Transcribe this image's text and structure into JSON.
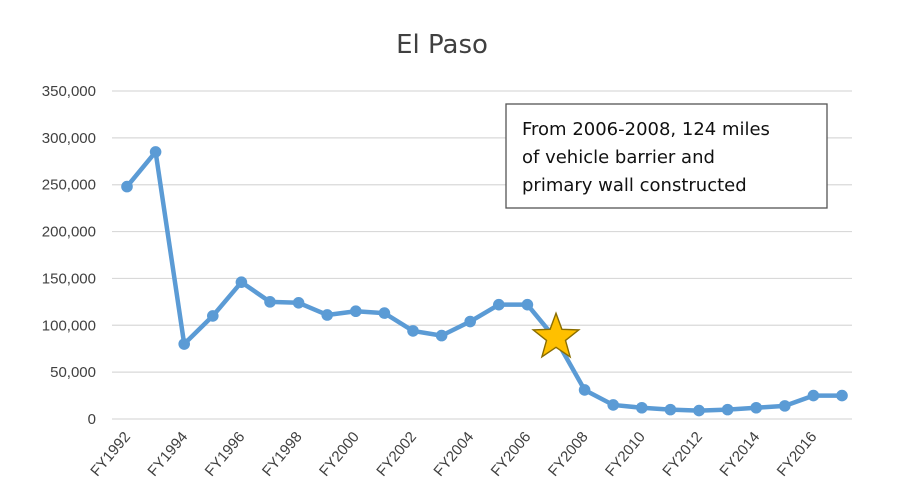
{
  "chart_data": {
    "type": "line",
    "title": "El Paso",
    "xlabel": "",
    "ylabel": "",
    "ylim": [
      0,
      350000
    ],
    "y_ticks": [
      "350,000",
      "300,000",
      "250,000",
      "200,000",
      "150,000",
      "100,000",
      "50,000",
      "0"
    ],
    "y_tick_values": [
      350000,
      300000,
      250000,
      200000,
      150000,
      100000,
      50000,
      0
    ],
    "grid": true,
    "legend": "none",
    "x": [
      "FY1992",
      "FY1993",
      "FY1994",
      "FY1995",
      "FY1996",
      "FY1997",
      "FY1998",
      "FY1999",
      "FY2000",
      "FY2001",
      "FY2002",
      "FY2003",
      "FY2004",
      "FY2005",
      "FY2006",
      "FY2007",
      "FY2008",
      "FY2009",
      "FY2010",
      "FY2011",
      "FY2012",
      "FY2013",
      "FY2014",
      "FY2015",
      "FY2016",
      "FY2017"
    ],
    "x_tick_labels": [
      "FY1992",
      "FY1994",
      "FY1996",
      "FY1998",
      "FY2000",
      "FY2002",
      "FY2004",
      "FY2006",
      "FY2008",
      "FY2010",
      "FY2012",
      "FY2014",
      "FY2016"
    ],
    "series": [
      {
        "name": "El Paso",
        "color": "#5b9bd5",
        "values": [
          248000,
          285000,
          80000,
          110000,
          146000,
          125000,
          124000,
          111000,
          115000,
          113000,
          94000,
          89000,
          104000,
          122000,
          122000,
          85000,
          31000,
          15000,
          12000,
          10000,
          9000,
          10000,
          12000,
          14000,
          25000,
          25000
        ]
      }
    ],
    "annotations": [
      {
        "text_lines": [
          "From 2006-2008, 124 miles",
          "of vehicle barrier and",
          "primary wall constructed"
        ],
        "marker": "star",
        "marker_x": "FY2007",
        "marker_value": 85000,
        "marker_color": "#ffc000"
      }
    ]
  }
}
